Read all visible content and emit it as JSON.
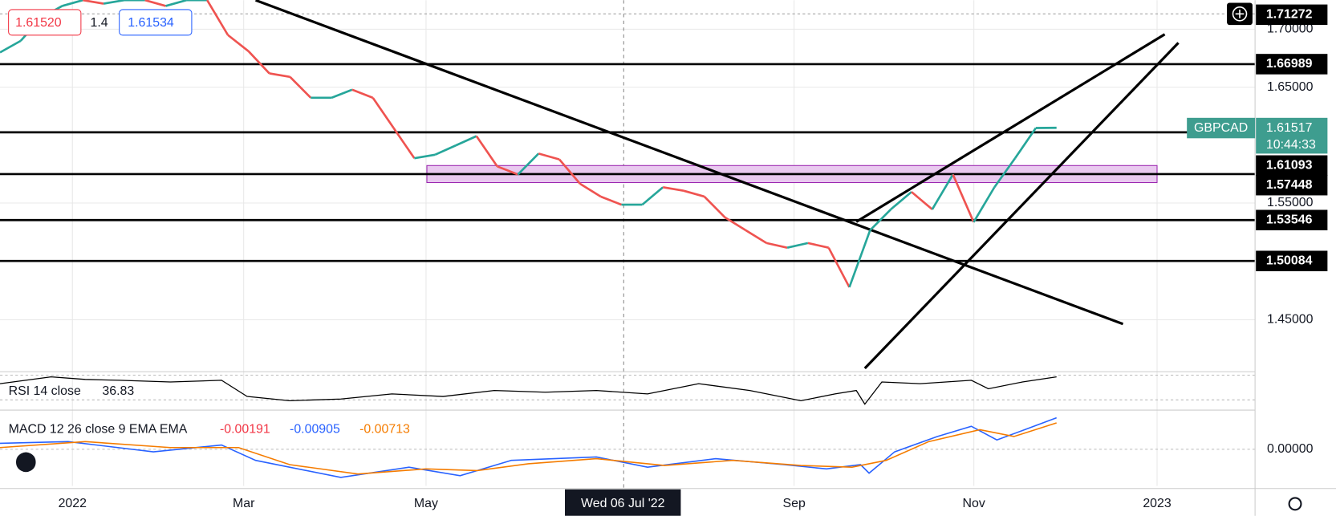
{
  "header": {
    "open_label": "1.61520",
    "small_label": "1.4",
    "bid_label": "1.61534"
  },
  "price_axis": {
    "ticks": [
      "1.70000",
      "1.65000",
      "1.55000",
      "1.45000"
    ],
    "macd_tick": "0.00000"
  },
  "price_labels": {
    "top": "1.71272",
    "levels": [
      "1.66989",
      "1.61093",
      "1.57448",
      "1.53546",
      "1.50084"
    ],
    "symbol": "GBPCAD",
    "last": "1.61517",
    "countdown": "10:44:33"
  },
  "time_axis": {
    "labels": [
      "2022",
      "Mar",
      "May",
      "Sep",
      "Nov",
      "2023"
    ],
    "crosshair": "Wed 06 Jul '22"
  },
  "rsi": {
    "label": "RSI 14 close",
    "value": "36.83"
  },
  "macd": {
    "label": "MACD 12 26 close 9 EMA EMA",
    "hist": "-0.00191",
    "macd": "-0.00905",
    "signal": "-0.00713"
  },
  "price_series": [
    1.68,
    1.69,
    1.71,
    1.72,
    1.725,
    1.722,
    1.725,
    1.725,
    1.72,
    1.725,
    1.725,
    1.695,
    1.681,
    1.662,
    1.659,
    1.641,
    1.641,
    1.648,
    1.641,
    1.615,
    1.589,
    1.592,
    1.6,
    1.608,
    1.582,
    1.575,
    1.593,
    1.588,
    1.567,
    1.556,
    1.549,
    1.549,
    1.564,
    1.561,
    1.556,
    1.538,
    1.527,
    1.516,
    1.512,
    1.516,
    1.512,
    1.478,
    1.527,
    1.545,
    1.56,
    1.545,
    1.575,
    1.534,
    1.564,
    1.589,
    1.615,
    1.61517
  ]
}
